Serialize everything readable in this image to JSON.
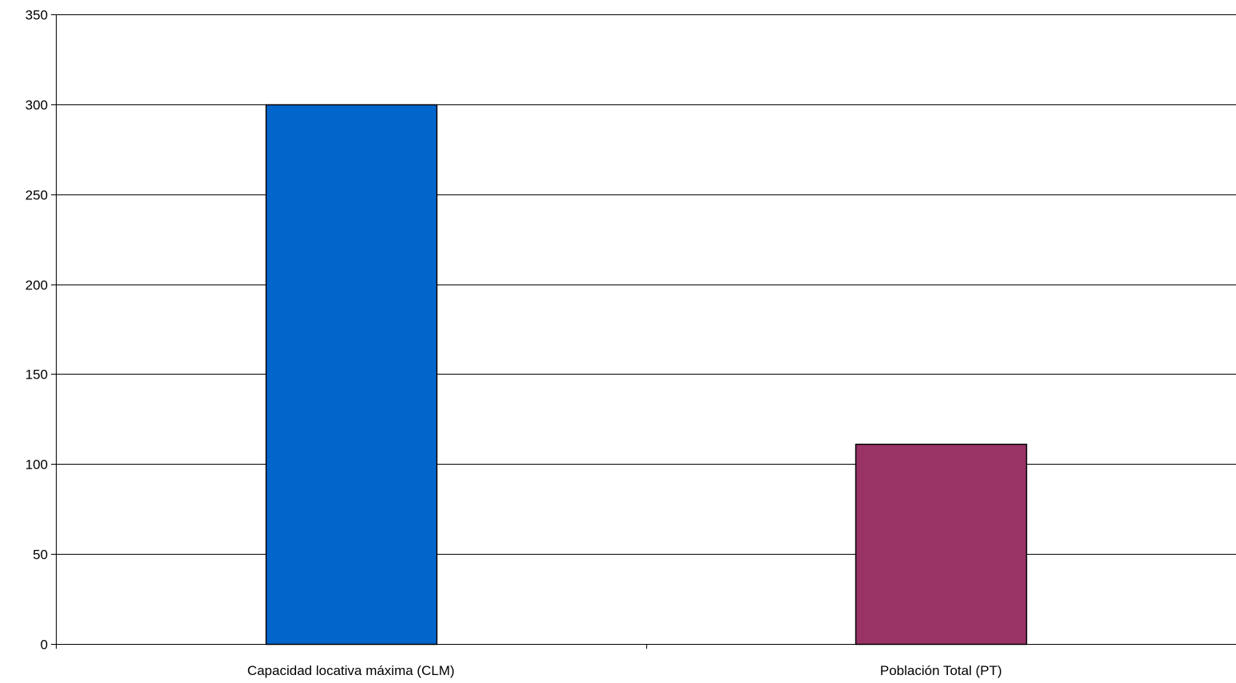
{
  "chart_data": {
    "type": "bar",
    "categories": [
      "Capacidad locativa máxima (CLM)",
      "Población Total (PT)"
    ],
    "values": [
      300,
      111
    ],
    "colors": [
      "#0066CC",
      "#993366"
    ],
    "ylim": [
      0,
      350
    ],
    "yticks": [
      0,
      50,
      100,
      150,
      200,
      250,
      300,
      350
    ],
    "grid": true,
    "legend": "none",
    "title": "",
    "xlabel": "",
    "ylabel": ""
  }
}
